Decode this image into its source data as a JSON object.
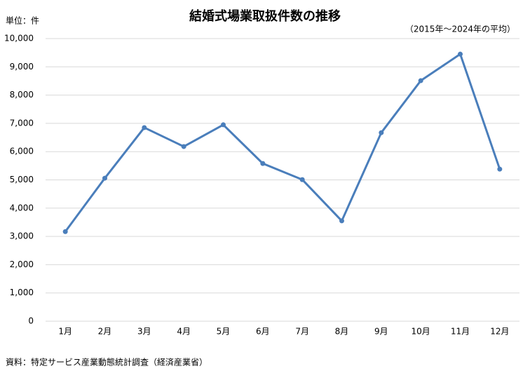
{
  "chart_data": {
    "type": "line",
    "title": "結婚式場業取扱件数の推移",
    "subtitle": "（2015年～2024年の平均）",
    "unit_label": "単位：件",
    "source": "資料：特定サービス産業動態統計調査（経済産業省）",
    "categories": [
      "1月",
      "2月",
      "3月",
      "4月",
      "5月",
      "6月",
      "7月",
      "8月",
      "9月",
      "10月",
      "11月",
      "12月"
    ],
    "values": [
      3170,
      5060,
      6850,
      6180,
      6950,
      5580,
      5010,
      3550,
      6670,
      8510,
      9450,
      5380
    ],
    "color": "#4a7ebb",
    "ylim": [
      0,
      10000
    ],
    "yticks": [
      0,
      {
        "value": 1000,
        "label": "1,000"
      },
      {
        "value": 2000,
        "label": "2,000"
      },
      {
        "value": 3000,
        "label": "3,000"
      },
      {
        "value": 4000,
        "label": "4,000"
      },
      {
        "value": 5000,
        "label": "5,000"
      },
      {
        "value": 6000,
        "label": "6,000"
      },
      {
        "value": 7000,
        "label": "7,000"
      },
      {
        "value": 8000,
        "label": "8,000"
      },
      {
        "value": 9000,
        "label": "9,000"
      },
      {
        "value": 10000,
        "label": "10,000"
      }
    ],
    "grid": true
  }
}
